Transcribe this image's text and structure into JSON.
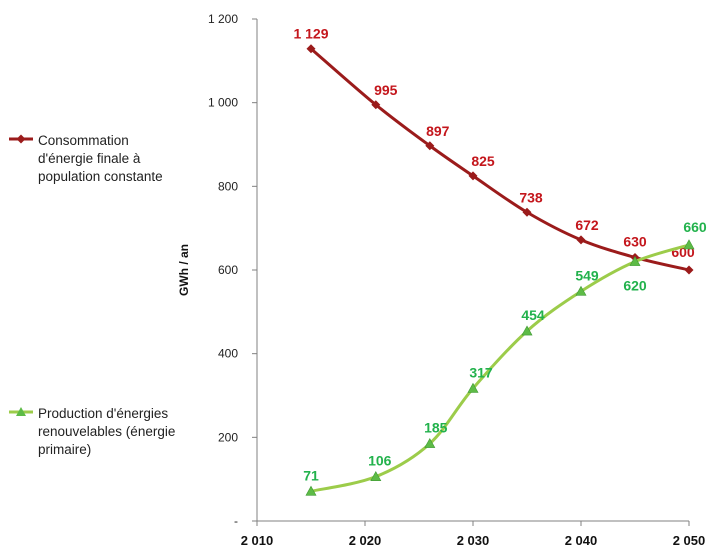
{
  "chart_data": {
    "type": "line",
    "xlabel": "",
    "ylabel": "GWh / an",
    "xlim": [
      2010,
      2050
    ],
    "ylim": [
      0,
      1200
    ],
    "x_ticks": [
      2010,
      2020,
      2030,
      2040,
      2050
    ],
    "x_tick_labels": [
      "2 010",
      "2 020",
      "2 030",
      "2 040",
      "2 050"
    ],
    "y_ticks": [
      0,
      200,
      400,
      600,
      800,
      1000,
      1200
    ],
    "y_tick_labels": [
      "-",
      "200",
      "400",
      "600",
      "800",
      "1 000",
      "1 200"
    ],
    "grid": false,
    "legend_position": "left",
    "series": [
      {
        "name_lines": [
          "Consommation",
          "d'énergie finale  à",
          "population constante"
        ],
        "color": "#9b1b1b",
        "label_color": "#c4161c",
        "marker": "diamond",
        "x": [
          2015,
          2021,
          2026,
          2030,
          2035,
          2040,
          2045,
          2050
        ],
        "values": [
          1129,
          995,
          897,
          825,
          738,
          672,
          630,
          600
        ],
        "labels": [
          "1 129",
          "995",
          "897",
          "825",
          "738",
          "672",
          "630",
          "600"
        ]
      },
      {
        "name_lines": [
          "Production d'énergies",
          "renouvelables (énergie",
          "primaire)"
        ],
        "color": "#9ccc4a",
        "label_color": "#22b24c",
        "marker": "triangle",
        "x": [
          2015,
          2021,
          2026,
          2030,
          2035,
          2040,
          2045,
          2050
        ],
        "values": [
          71,
          106,
          185,
          317,
          454,
          549,
          620,
          660
        ],
        "labels": [
          "71",
          "106",
          "185",
          "317",
          "454",
          "549",
          "620",
          "660"
        ]
      }
    ]
  }
}
